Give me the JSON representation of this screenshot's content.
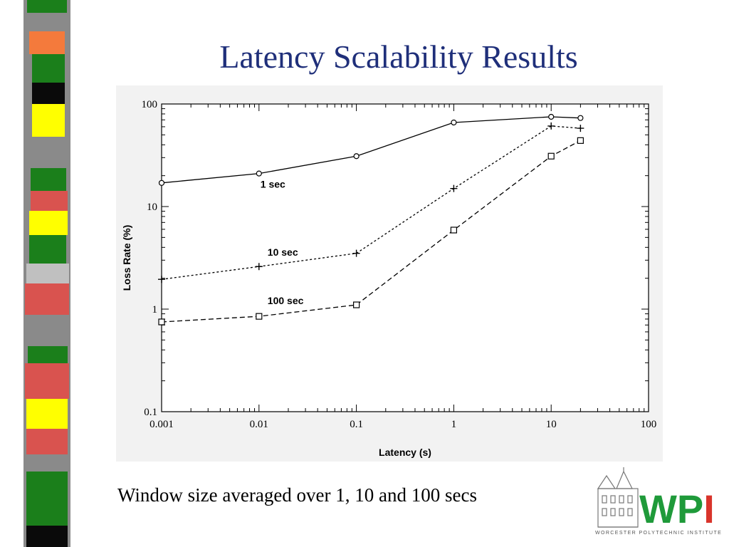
{
  "slide": {
    "title": "Latency Scalability Results",
    "caption": "Window size averaged over 1, 10 and 100 secs"
  },
  "logo": {
    "text": "WPI",
    "subtitle": "WORCESTER POLYTECHNIC INSTITUTE",
    "colors": {
      "green": "#1f9a3a",
      "red": "#d9342b"
    },
    "icon": "wpi-building-icon"
  },
  "side_strip": {
    "colors": [
      "#1b7f1b",
      "#f47a3c",
      "#0a0a0a",
      "#ffff00",
      "#8a8a8a",
      "#d9534f",
      "#c0c0c0"
    ]
  },
  "chart_data": {
    "type": "line",
    "x_scale": "log",
    "y_scale": "log",
    "xlim": [
      0.001,
      100
    ],
    "ylim": [
      0.1,
      100
    ],
    "xlabel": "Latency (s)",
    "ylabel": "Loss Rate (%)",
    "x_ticks": [
      "0.001",
      "0.01",
      "0.1",
      "1",
      "10",
      "100"
    ],
    "y_ticks": [
      "0.1",
      "1",
      "10",
      "100"
    ],
    "grid": false,
    "series": [
      {
        "name": "1 sec",
        "marker": "circle",
        "line": "solid",
        "x": [
          0.001,
          0.01,
          0.1,
          1,
          10,
          20
        ],
        "y": [
          17,
          21,
          31,
          66,
          75,
          73
        ]
      },
      {
        "name": "10 sec",
        "marker": "plus",
        "line": "dotted",
        "x": [
          0.001,
          0.01,
          0.1,
          1,
          10,
          20
        ],
        "y": [
          1.95,
          2.6,
          3.5,
          15,
          61,
          58
        ]
      },
      {
        "name": "100 sec",
        "marker": "square",
        "line": "dashed",
        "x": [
          0.001,
          0.01,
          0.1,
          1,
          10,
          20
        ],
        "y": [
          0.75,
          0.85,
          1.1,
          5.9,
          31,
          44
        ]
      }
    ]
  }
}
